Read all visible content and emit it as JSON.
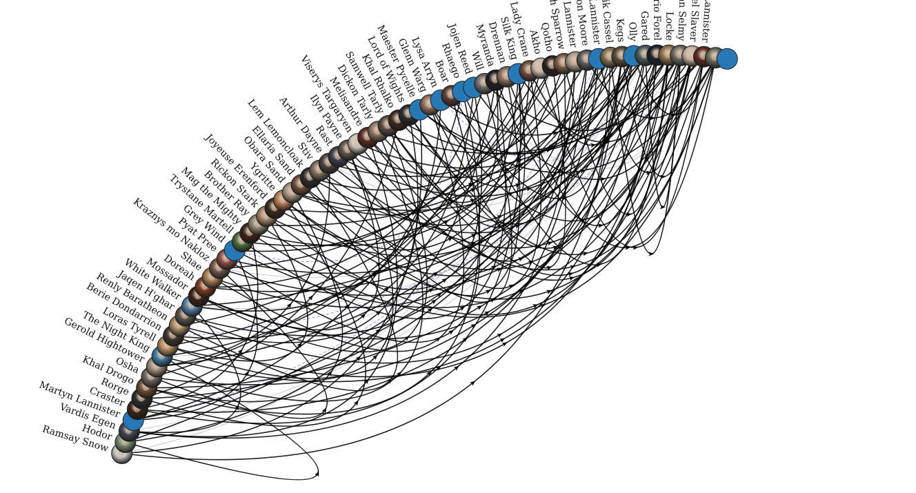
{
  "graph": {
    "nodes": [
      {
        "label": "Ramsay Snow",
        "style": "photo",
        "color": "#c8c8c8"
      },
      {
        "label": "Hodor",
        "style": "photo",
        "color": "#7b8a6e"
      },
      {
        "label": "Vardis Egen",
        "style": "photo",
        "color": "#3f4650"
      },
      {
        "label": "Martyn Lannister",
        "style": "blue",
        "color": "#2779b6"
      },
      {
        "label": "Craster",
        "style": "photo",
        "color": "#3a2418"
      },
      {
        "label": "Rorge",
        "style": "photo",
        "color": "#2b2b2b"
      },
      {
        "label": "Khal Drogo",
        "style": "photo",
        "color": "#6a4a33"
      },
      {
        "label": "Osha",
        "style": "photo",
        "color": "#6b6460"
      },
      {
        "label": "Gerold Hightower",
        "style": "photo",
        "color": "#9a8b7a"
      },
      {
        "label": "The Night King",
        "style": "photo",
        "color": "#3a7aa0"
      },
      {
        "label": "Loras Tyrell",
        "style": "photo",
        "color": "#b08a5a"
      },
      {
        "label": "Berie Dondarrion",
        "style": "photo",
        "color": "#3b3530"
      },
      {
        "label": "Renly Baratheon",
        "style": "photo",
        "color": "#a28660"
      },
      {
        "label": "Jaqen H'ghar",
        "style": "photo",
        "color": "#56504a"
      },
      {
        "label": "White Walker",
        "style": "photo",
        "color": "#4f7fa8"
      },
      {
        "label": "Mossador",
        "style": "photo",
        "color": "#3a2318"
      },
      {
        "label": "Doreah",
        "style": "photo",
        "color": "#7a3a22"
      },
      {
        "label": "Shae",
        "style": "photo",
        "color": "#a5794f"
      },
      {
        "label": "Kraznys mo Nakloz",
        "style": "photo",
        "color": "#6e5448"
      },
      {
        "label": "Pyat Pree",
        "style": "photo",
        "color": "#8a4a48"
      },
      {
        "label": "Grey Wind",
        "style": "blue",
        "color": "#2779b6"
      },
      {
        "label": "Trystane Martell",
        "style": "photo",
        "color": "#4a6a3a"
      },
      {
        "label": "Mag the Mighty",
        "style": "photo",
        "color": "#3a2218"
      },
      {
        "label": "Brother Ray",
        "style": "photo",
        "color": "#8a8070"
      },
      {
        "label": "Rickon Stark",
        "style": "photo",
        "color": "#a08668"
      },
      {
        "label": "Joyeuse Erenford",
        "style": "photo",
        "color": "#3a2a1c"
      },
      {
        "label": "Ygritte",
        "style": "photo",
        "color": "#b27a52"
      },
      {
        "label": "Obara Sand",
        "style": "photo",
        "color": "#a09080"
      },
      {
        "label": "Ellaria Sand",
        "style": "photo",
        "color": "#6a4a3a"
      },
      {
        "label": "Lem Lemoncloak",
        "style": "photo",
        "color": "#2a2a2a"
      },
      {
        "label": "Stiv",
        "style": "photo",
        "color": "#7a6a5a"
      },
      {
        "label": "Arthur Dayne",
        "style": "photo",
        "color": "#4a4040"
      },
      {
        "label": "Rast",
        "style": "photo",
        "color": "#3a4048"
      },
      {
        "label": "Ilyn Payne",
        "style": "photo",
        "color": "#5a5048"
      },
      {
        "label": "Viserys Targaryen",
        "style": "photo",
        "color": "#c8c4b8"
      },
      {
        "label": "Melisandre",
        "style": "photo",
        "color": "#5a2a22"
      },
      {
        "label": "Dickon Tarly",
        "style": "photo",
        "color": "#8a7060"
      },
      {
        "label": "Samwell Tarly",
        "style": "photo",
        "color": "#5a4a42"
      },
      {
        "label": "Khal Rhalko",
        "style": "photo",
        "color": "#3a2a22"
      },
      {
        "label": "Lord of Wights",
        "style": "photo",
        "color": "#2a2a2a"
      },
      {
        "label": "Maester Pycelle",
        "style": "blue",
        "color": "#2779b6"
      },
      {
        "label": "Glenn Warg",
        "style": "photo",
        "color": "#8a6a58"
      },
      {
        "label": "Lysa Arryn",
        "style": "blue",
        "color": "#2779b6"
      },
      {
        "label": "Boar",
        "style": "photo",
        "color": "#5a3a32"
      },
      {
        "label": "Rhaego",
        "style": "blue",
        "color": "#2779b6"
      },
      {
        "label": "Jojen Reed",
        "style": "blue",
        "color": "#2779b6"
      },
      {
        "label": "Will",
        "style": "photo",
        "color": "#6a6a6a"
      },
      {
        "label": "Myranda",
        "style": "photo",
        "color": "#1e1e26"
      },
      {
        "label": "Drennan",
        "style": "photo",
        "color": "#8a6a5a"
      },
      {
        "label": "Silk King",
        "style": "blue",
        "color": "#2779b6"
      },
      {
        "label": "Lady Crane",
        "style": "photo",
        "color": "#6a4a3a"
      },
      {
        "label": "Akho",
        "style": "photo",
        "color": "#c8b8a8"
      },
      {
        "label": "Qotho",
        "style": "photo",
        "color": "#2a2220"
      },
      {
        "label": "High Sparrow",
        "style": "photo",
        "color": "#7a5a42"
      },
      {
        "label": "Tywin Lannister",
        "style": "photo",
        "color": "#a89888"
      },
      {
        "label": "Mandon Moore",
        "style": "photo",
        "color": "#5a5a5a"
      },
      {
        "label": "Cersei Lannister",
        "style": "blue",
        "color": "#2779b6"
      },
      {
        "label": "Rodrik Cassel",
        "style": "photo",
        "color": "#7a6a4a"
      },
      {
        "label": "Kegs",
        "style": "photo",
        "color": "#5a4a3a"
      },
      {
        "label": "Olly",
        "style": "blue",
        "color": "#2779b6"
      },
      {
        "label": "Gared",
        "style": "photo",
        "color": "#4a5a5a"
      },
      {
        "label": "Syrio Forel",
        "style": "photo",
        "color": "#1a2028"
      },
      {
        "label": "Locke",
        "style": "photo",
        "color": "#8a7048"
      },
      {
        "label": "Barristan Selmy",
        "style": "photo",
        "color": "#6a6a62"
      },
      {
        "label": "Rebel Slaver",
        "style": "photo",
        "color": "#c8b0a0"
      },
      {
        "label": "Jaime Lannister",
        "style": "photo",
        "color": "#5a2a22"
      },
      {
        "label": "",
        "style": "photo",
        "color": "#6a6a5a"
      },
      {
        "label": "",
        "style": "blue",
        "color": "#2779b6"
      }
    ],
    "edges": [
      [
        0,
        40
      ],
      [
        0,
        58
      ],
      [
        1,
        47
      ],
      [
        1,
        63
      ],
      [
        2,
        35
      ],
      [
        2,
        55
      ],
      [
        3,
        44
      ],
      [
        3,
        62
      ],
      [
        4,
        49
      ],
      [
        4,
        60
      ],
      [
        5,
        38
      ],
      [
        5,
        56
      ],
      [
        6,
        44
      ],
      [
        6,
        66
      ],
      [
        7,
        51
      ],
      [
        7,
        61
      ],
      [
        8,
        36
      ],
      [
        8,
        59
      ],
      [
        9,
        48
      ],
      [
        9,
        64
      ],
      [
        10,
        33
      ],
      [
        10,
        57
      ],
      [
        11,
        45
      ],
      [
        11,
        62
      ],
      [
        12,
        39
      ],
      [
        12,
        54
      ],
      [
        13,
        50
      ],
      [
        13,
        60
      ],
      [
        14,
        42
      ],
      [
        14,
        65
      ],
      [
        15,
        37
      ],
      [
        15,
        58
      ],
      [
        16,
        46
      ],
      [
        16,
        61
      ],
      [
        17,
        41
      ],
      [
        17,
        55
      ],
      [
        18,
        52
      ],
      [
        18,
        63
      ],
      [
        19,
        43
      ],
      [
        19,
        59
      ],
      [
        20,
        50
      ],
      [
        20,
        64
      ],
      [
        21,
        47
      ],
      [
        21,
        57
      ],
      [
        22,
        53
      ],
      [
        22,
        66
      ],
      [
        23,
        45
      ],
      [
        23,
        60
      ],
      [
        24,
        56
      ],
      [
        24,
        62
      ],
      [
        25,
        49
      ],
      [
        25,
        58
      ],
      [
        26,
        54
      ],
      [
        26,
        65
      ],
      [
        27,
        51
      ],
      [
        27,
        63
      ],
      [
        28,
        48
      ],
      [
        28,
        61
      ],
      [
        29,
        52
      ],
      [
        29,
        57
      ],
      [
        30,
        46
      ],
      [
        30,
        59
      ],
      [
        31,
        55
      ],
      [
        31,
        64
      ],
      [
        32,
        50
      ],
      [
        32,
        62
      ],
      [
        33,
        58
      ],
      [
        33,
        66
      ],
      [
        34,
        53
      ],
      [
        34,
        60
      ],
      [
        35,
        47
      ],
      [
        35,
        63
      ],
      [
        36,
        56
      ],
      [
        36,
        65
      ],
      [
        37,
        49
      ],
      [
        37,
        61
      ],
      [
        38,
        54
      ],
      [
        38,
        62
      ],
      [
        39,
        57
      ],
      [
        39,
        64
      ],
      [
        40,
        59
      ],
      [
        40,
        66
      ],
      [
        41,
        52
      ],
      [
        41,
        63
      ],
      [
        42,
        60
      ],
      [
        43,
        58
      ],
      [
        44,
        62
      ],
      [
        45,
        65
      ],
      [
        46,
        64
      ],
      [
        47,
        61
      ],
      [
        48,
        66
      ],
      [
        49,
        63
      ],
      [
        50,
        59
      ],
      [
        51,
        65
      ],
      [
        53,
        62
      ],
      [
        55,
        66
      ],
      [
        56,
        64
      ],
      [
        57,
        63
      ],
      [
        58,
        65
      ],
      [
        59,
        66
      ],
      [
        60,
        63
      ],
      [
        1,
        9
      ],
      [
        2,
        14
      ],
      [
        3,
        20
      ],
      [
        5,
        26
      ],
      [
        7,
        18
      ],
      [
        8,
        31
      ],
      [
        10,
        24
      ],
      [
        12,
        29
      ],
      [
        15,
        33
      ],
      [
        4,
        22
      ],
      [
        6,
        27
      ]
    ],
    "faint_edges": [
      [
        0,
        52
      ],
      [
        2,
        61
      ],
      [
        9,
        57
      ],
      [
        14,
        63
      ],
      [
        18,
        60
      ],
      [
        31,
        59
      ],
      [
        45,
        66
      ],
      [
        50,
        64
      ]
    ],
    "dashed_edges": [
      [
        3,
        56
      ],
      [
        11,
        64
      ],
      [
        20,
        44
      ],
      [
        42,
        59
      ]
    ],
    "colors": {
      "edge": "#000000",
      "node_blue": "#2779b6",
      "node_stroke": "#1d1d1d",
      "dashed_edge": "#5a5ad8"
    }
  }
}
